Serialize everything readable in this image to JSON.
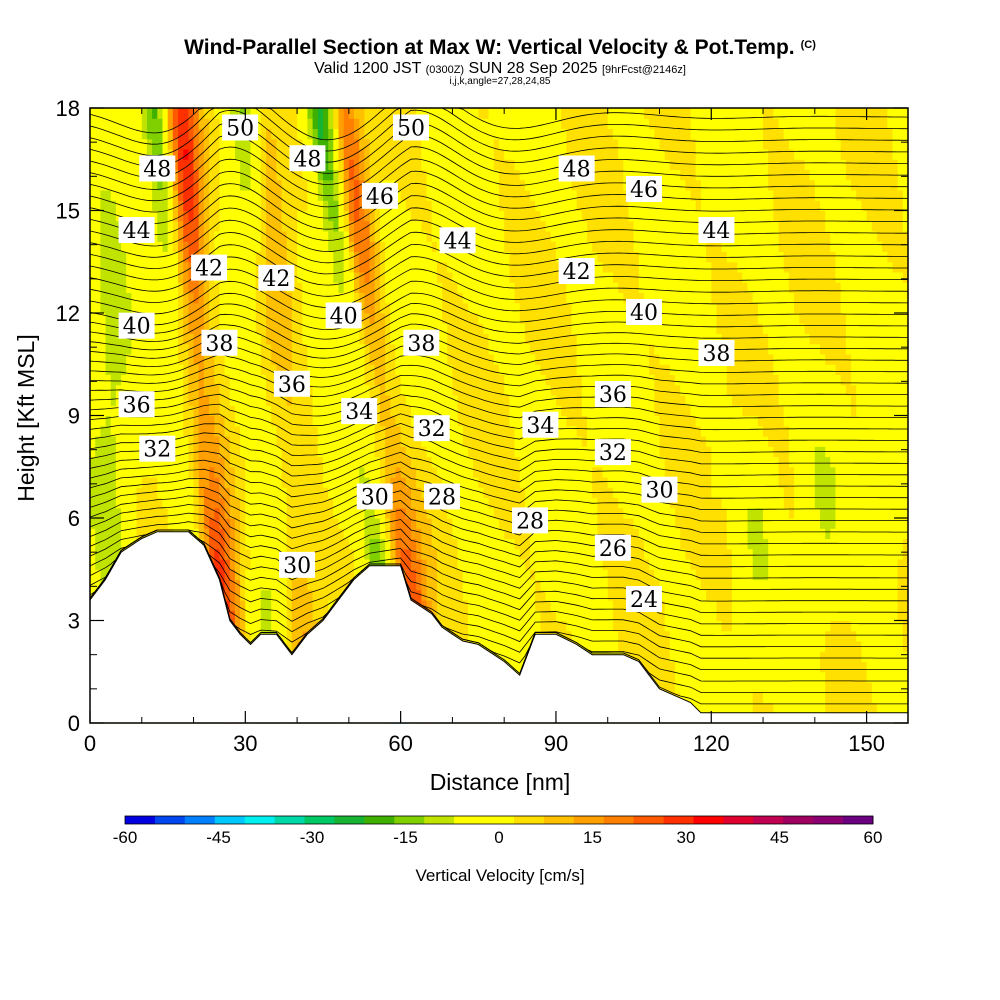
{
  "chart_data": {
    "type": "heatmap",
    "title": "Wind-Parallel Section at Max W: Vertical Velocity & Pot.Temp.",
    "copyright": "(C)",
    "subtitle_main": "Valid 1200 JST",
    "subtitle_utc": "(0300Z)",
    "subtitle_date": "SUN 28 Sep 2025",
    "subtitle_fcst": "[9hrFcst@2146z]",
    "subtitle_idx": "i,j,k,angle=27,28,24,85",
    "xlabel": "Distance [nm]",
    "ylabel": "Height [Kft MSL]",
    "xlim": [
      0,
      158
    ],
    "ylim": [
      0,
      18
    ],
    "x_ticks": [
      "0",
      "30",
      "60",
      "90",
      "120",
      "150"
    ],
    "y_ticks": [
      "0",
      "3",
      "6",
      "9",
      "12",
      "15",
      "18"
    ],
    "colorbar": {
      "title": "Vertical Velocity [cm/s]",
      "range": [
        -60,
        60
      ],
      "step": 5,
      "tick_labels": [
        "-60",
        "-45",
        "-30",
        "-15",
        "0",
        "15",
        "30",
        "45",
        "60"
      ],
      "colors": [
        "#0000e0",
        "#0046f0",
        "#0080ff",
        "#00c8ff",
        "#00f0f0",
        "#00d8a8",
        "#00c864",
        "#16b432",
        "#40b000",
        "#80d000",
        "#c0e400",
        "#ffff00",
        "#ffff00",
        "#ffe000",
        "#ffc000",
        "#ffa000",
        "#ff8000",
        "#ff5a00",
        "#ff3000",
        "#ff0000",
        "#e00030",
        "#c00050",
        "#a00060",
        "#8a0070",
        "#6a0080"
      ]
    },
    "terrain_kft": [
      [
        0,
        3.6
      ],
      [
        3,
        4.2
      ],
      [
        6,
        5.0
      ],
      [
        8,
        5.2
      ],
      [
        10,
        5.4
      ],
      [
        13,
        5.6
      ],
      [
        19,
        5.6
      ],
      [
        22,
        5.2
      ],
      [
        25,
        4.2
      ],
      [
        27,
        3.0
      ],
      [
        29,
        2.6
      ],
      [
        31,
        2.3
      ],
      [
        33,
        2.6
      ],
      [
        36,
        2.6
      ],
      [
        39,
        2.0
      ],
      [
        42,
        2.6
      ],
      [
        45,
        3.0
      ],
      [
        48,
        3.6
      ],
      [
        51,
        4.2
      ],
      [
        54,
        4.6
      ],
      [
        60,
        4.6
      ],
      [
        62,
        3.6
      ],
      [
        64,
        3.4
      ],
      [
        66,
        3.2
      ],
      [
        68,
        2.8
      ],
      [
        70,
        2.6
      ],
      [
        72,
        2.4
      ],
      [
        75,
        2.3
      ],
      [
        80,
        1.8
      ],
      [
        83,
        1.4
      ],
      [
        86,
        2.6
      ],
      [
        90,
        2.6
      ],
      [
        94,
        2.3
      ],
      [
        97,
        2.0
      ],
      [
        103,
        2.0
      ],
      [
        106,
        1.8
      ],
      [
        108,
        1.4
      ],
      [
        110,
        1.0
      ],
      [
        113,
        0.8
      ],
      [
        116,
        0.6
      ],
      [
        118,
        0.3
      ],
      [
        158,
        0.3
      ]
    ],
    "updraft_bands": [
      {
        "x_bottom": 27,
        "x_top": 17,
        "amplitude": 38
      },
      {
        "x_bottom": 65,
        "x_top": 48,
        "amplitude": 30
      },
      {
        "x_bottom": 43,
        "x_top": 33,
        "amplitude": 14
      }
    ],
    "downdraft_bands": [
      {
        "x_bottom": 23,
        "x_top": 13,
        "amplitude": -26
      },
      {
        "x_bottom": 60,
        "x_top": 45,
        "amplitude": -40
      },
      {
        "x_bottom": 35,
        "x_top": 30,
        "amplitude": -16
      }
    ],
    "theta_contours": [
      {
        "value": "24",
        "label_x": 107,
        "label_y": 3.6
      },
      {
        "value": "26",
        "label_x": 101,
        "label_y": 5.1
      },
      {
        "value": "28",
        "label_x": 85,
        "label_y": 5.9
      },
      {
        "value": "30",
        "label_x": 110,
        "label_y": 6.8
      },
      {
        "value": "32",
        "label_x": 101,
        "label_y": 7.9
      },
      {
        "value": "34",
        "label_x": 87,
        "label_y": 8.7
      },
      {
        "value": "36",
        "label_x": 101,
        "label_y": 9.6
      },
      {
        "value": "38",
        "label_x": 121,
        "label_y": 10.8
      },
      {
        "value": "40",
        "label_x": 107,
        "label_y": 12.0
      },
      {
        "value": "42",
        "label_x": 94,
        "label_y": 13.2
      },
      {
        "value": "44",
        "label_x": 121,
        "label_y": 14.4
      },
      {
        "value": "46",
        "label_x": 107,
        "label_y": 15.6
      },
      {
        "value": "48",
        "label_x": 94,
        "label_y": 16.2
      },
      {
        "value": "50",
        "label_x": 29,
        "label_y": 17.4
      }
    ],
    "extra_labels": [
      {
        "value": "48",
        "x": 13,
        "y": 16.2
      },
      {
        "value": "44",
        "x": 9,
        "y": 14.4
      },
      {
        "value": "40",
        "x": 9,
        "y": 11.6
      },
      {
        "value": "36",
        "x": 9,
        "y": 9.3
      },
      {
        "value": "32",
        "x": 13,
        "y": 8.0
      },
      {
        "value": "48",
        "x": 42,
        "y": 16.5
      },
      {
        "value": "50",
        "x": 62,
        "y": 17.4
      },
      {
        "value": "46",
        "x": 56,
        "y": 15.4
      },
      {
        "value": "44",
        "x": 71,
        "y": 14.1
      },
      {
        "value": "42",
        "x": 23,
        "y": 13.3
      },
      {
        "value": "42",
        "x": 36,
        "y": 13.0
      },
      {
        "value": "40",
        "x": 49,
        "y": 11.9
      },
      {
        "value": "38",
        "x": 25,
        "y": 11.1
      },
      {
        "value": "38",
        "x": 64,
        "y": 11.1
      },
      {
        "value": "36",
        "x": 39,
        "y": 9.9
      },
      {
        "value": "34",
        "x": 52,
        "y": 9.1
      },
      {
        "value": "32",
        "x": 66,
        "y": 8.6
      },
      {
        "value": "30",
        "x": 55,
        "y": 6.6
      },
      {
        "value": "28",
        "x": 68,
        "y": 6.6
      },
      {
        "value": "30",
        "x": 40,
        "y": 4.6
      }
    ]
  }
}
